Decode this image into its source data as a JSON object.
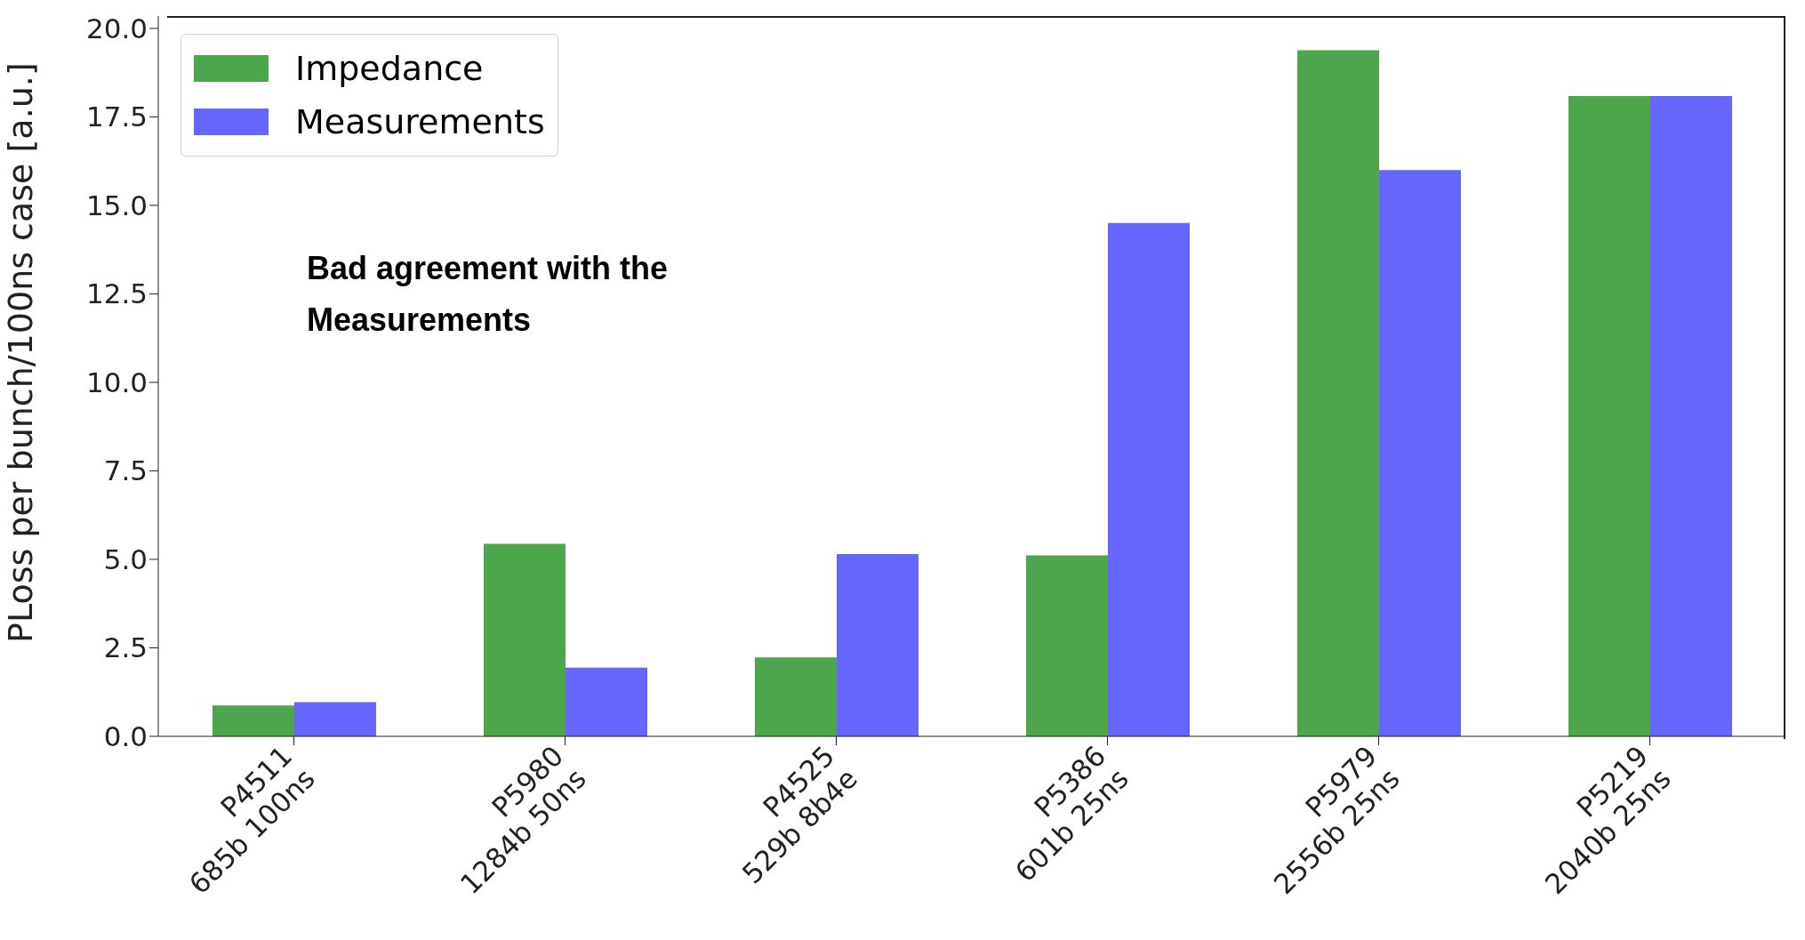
{
  "chart_data": {
    "type": "bar",
    "ylabel": "PLoss per bunch/100ns case [a.u.]",
    "categories": [
      "P4511\n685b 100ns",
      "P5980\n1284b 50ns",
      "P4525\n529b 8b4e",
      "P5386\n601b 25ns",
      "P5979\n2556b 25ns",
      "P5219\n2040b 25ns"
    ],
    "series": [
      {
        "name": "Impedance",
        "color": "#4ca64c",
        "values": [
          0.87,
          5.44,
          2.23,
          5.11,
          19.38,
          18.09
        ]
      },
      {
        "name": "Measurements",
        "color": "#6666ff",
        "values": [
          0.97,
          1.94,
          5.15,
          14.5,
          16.0,
          18.09
        ]
      }
    ],
    "ylim": [
      0,
      20.35
    ],
    "yticks": [
      {
        "value": 0,
        "label": "0.0"
      },
      {
        "value": 2.5,
        "label": "2.5"
      },
      {
        "value": 5,
        "label": "5.0"
      },
      {
        "value": 7.5,
        "label": "7.5"
      },
      {
        "value": 10,
        "label": "10.0"
      },
      {
        "value": 12.5,
        "label": "12.5"
      },
      {
        "value": 15,
        "label": "15.0"
      },
      {
        "value": 17.5,
        "label": "17.5"
      },
      {
        "value": 20,
        "label": "20.0"
      }
    ],
    "annotations": [
      "Bad agreement with the\nMeasurements"
    ],
    "legend": "top left",
    "grid": false
  }
}
